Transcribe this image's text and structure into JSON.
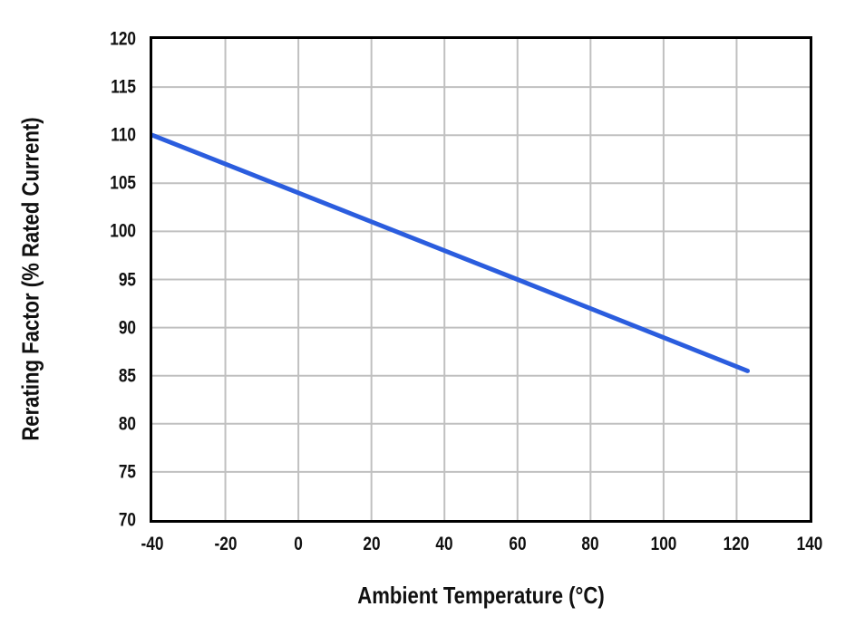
{
  "chart_data": {
    "type": "line",
    "title": "",
    "xlabel": "Ambient Temperature (°C)",
    "ylabel": "Rerating Factor (% Rated Current)",
    "xlim": [
      -40,
      140
    ],
    "ylim": [
      70,
      120
    ],
    "x_ticks": [
      -40,
      -20,
      0,
      20,
      40,
      60,
      80,
      100,
      120,
      140
    ],
    "y_ticks": [
      70,
      75,
      80,
      85,
      90,
      95,
      100,
      105,
      110,
      115,
      120
    ],
    "x_tick_step": 20,
    "y_tick_step": 5,
    "grid": true,
    "legend": "none",
    "series": [
      {
        "name": "Rerating Factor",
        "color": "#2b5dde",
        "stroke_width": 5,
        "slope_pct_per_degC": -0.15,
        "points": [
          [
            -40,
            110
          ],
          [
            60,
            95
          ],
          [
            123,
            85.5
          ]
        ]
      }
    ],
    "colors": {
      "background": "#ffffff",
      "grid": "#c0c0c0",
      "axis_border": "#000000",
      "text": "#111111",
      "line": "#2b5dde"
    }
  }
}
